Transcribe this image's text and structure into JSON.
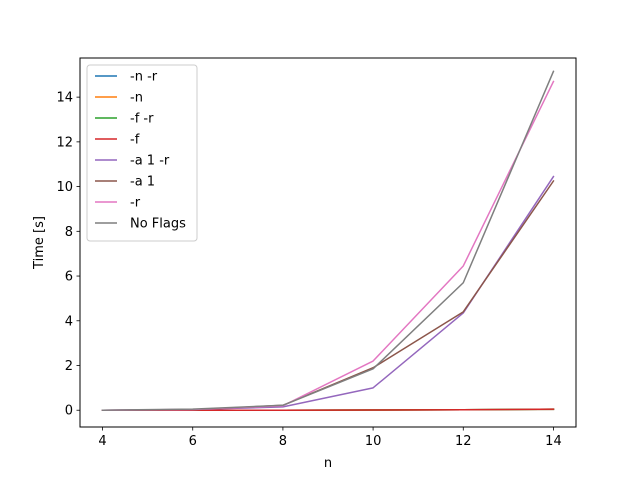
{
  "chart_data": {
    "type": "line",
    "title": "",
    "xlabel": "n",
    "ylabel": "Time [s]",
    "xlim": [
      3.5,
      14.5
    ],
    "ylim": [
      -0.75,
      15.75
    ],
    "xticks": [
      4,
      6,
      8,
      10,
      12,
      14
    ],
    "yticks": [
      0,
      2,
      4,
      6,
      8,
      10,
      12,
      14
    ],
    "grid": false,
    "legend_position": "upper-left",
    "x": [
      4,
      6,
      8,
      10,
      12,
      14
    ],
    "series": [
      {
        "name": "-n  -r",
        "color": "#1f77b4",
        "values": [
          0.0,
          0.0,
          0.0,
          0.01,
          0.02,
          0.04
        ]
      },
      {
        "name": "-n",
        "color": "#ff7f0e",
        "values": [
          0.0,
          0.0,
          0.0,
          0.01,
          0.02,
          0.04
        ]
      },
      {
        "name": "-f  -r",
        "color": "#2ca02c",
        "values": [
          0.0,
          0.0,
          0.0,
          0.01,
          0.02,
          0.05
        ]
      },
      {
        "name": "-f",
        "color": "#d62728",
        "values": [
          0.0,
          0.0,
          0.0,
          0.01,
          0.02,
          0.05
        ]
      },
      {
        "name": "-a 1 -r",
        "color": "#9467bd",
        "values": [
          0.0,
          0.03,
          0.15,
          1.0,
          4.35,
          10.45
        ]
      },
      {
        "name": "-a 1",
        "color": "#8c564b",
        "values": [
          0.0,
          0.02,
          0.22,
          1.9,
          4.4,
          10.25
        ]
      },
      {
        "name": "-r",
        "color": "#e377c2",
        "values": [
          0.0,
          0.03,
          0.2,
          2.2,
          6.45,
          14.7
        ]
      },
      {
        "name": "No Flags",
        "color": "#7f7f7f",
        "values": [
          0.0,
          0.05,
          0.22,
          1.85,
          5.7,
          15.15
        ]
      }
    ]
  }
}
